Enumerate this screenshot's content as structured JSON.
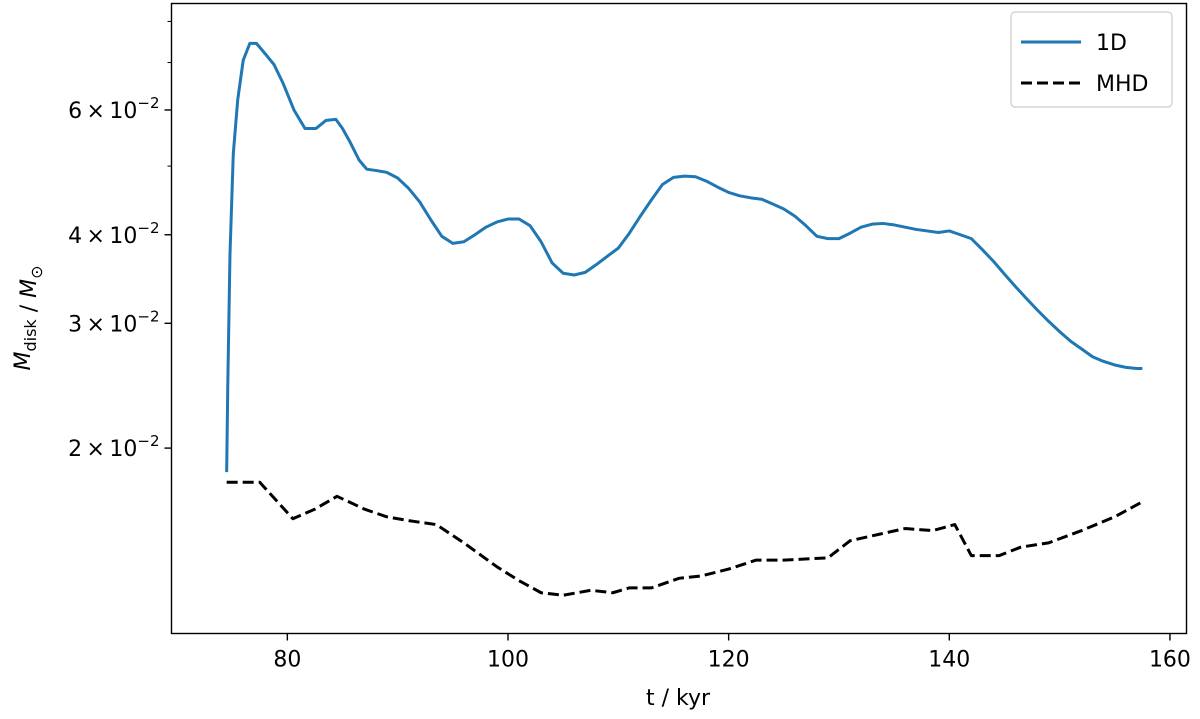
{
  "chart_data": {
    "type": "line",
    "xlabel": "t / kyr",
    "ylabel": {
      "main": "M",
      "sub": "disk",
      "sep": " / ",
      "main2": "M",
      "sub2": "⊙"
    },
    "xlim": [
      69.5,
      161.5
    ],
    "ylim": [
      0.01095,
      0.0848
    ],
    "yscale": "log",
    "x_ticks": [
      80,
      100,
      120,
      140,
      160
    ],
    "x_tick_labels": [
      "80",
      "100",
      "120",
      "140",
      "160"
    ],
    "y_ticks": [
      0.02,
      0.03,
      0.04,
      0.06
    ],
    "y_tick_labels": [
      {
        "mant": "2",
        "times": "×",
        "base": "10",
        "exp": "−2"
      },
      {
        "mant": "3",
        "times": "×",
        "base": "10",
        "exp": "−2"
      },
      {
        "mant": "4",
        "times": "×",
        "base": "10",
        "exp": "−2"
      },
      {
        "mant": "6",
        "times": "×",
        "base": "10",
        "exp": "−2"
      }
    ],
    "legend_position": "top-right",
    "grid": false,
    "series": [
      {
        "name": "1D",
        "color": "#1f77b4",
        "style": "solid",
        "x": [
          74.5,
          74.6,
          74.8,
          75.1,
          75.5,
          76.0,
          76.6,
          77.2,
          78.0,
          78.8,
          79.6,
          80.6,
          81.6,
          82.6,
          83.5,
          84.4,
          85.0,
          85.7,
          86.5,
          87.2,
          88.0,
          89.0,
          90.0,
          91.0,
          92.0,
          93.0,
          94.0,
          95.0,
          96.0,
          97.0,
          98.0,
          99.0,
          100.0,
          101.0,
          102.0,
          103.0,
          104.0,
          105.0,
          106.0,
          107.0,
          108.0,
          109.0,
          110.0,
          111.0,
          112.0,
          113.0,
          114.0,
          115.0,
          116.0,
          117.0,
          118.0,
          119.0,
          120.0,
          121.0,
          122.0,
          123.0,
          124.0,
          125.0,
          126.0,
          127.0,
          128.0,
          129.0,
          130.0,
          131.0,
          132.0,
          133.0,
          134.0,
          135.0,
          136.0,
          137.0,
          138.0,
          139.0,
          140.0,
          141.0,
          142.0,
          143.0,
          144.0,
          145.0,
          146.0,
          147.0,
          148.0,
          149.0,
          150.0,
          151.0,
          152.0,
          153.0,
          154.0,
          155.0,
          156.0,
          157.0,
          157.5
        ],
        "y": [
          0.0185,
          0.0245,
          0.0375,
          0.052,
          0.062,
          0.0705,
          0.0745,
          0.0745,
          0.072,
          0.0695,
          0.0655,
          0.06,
          0.0565,
          0.0565,
          0.058,
          0.0582,
          0.0565,
          0.054,
          0.051,
          0.0495,
          0.0493,
          0.049,
          0.0481,
          0.0465,
          0.0445,
          0.042,
          0.0398,
          0.0389,
          0.0391,
          0.04,
          0.041,
          0.0417,
          0.0421,
          0.0421,
          0.0412,
          0.0391,
          0.0365,
          0.0353,
          0.0351,
          0.0354,
          0.0363,
          0.0373,
          0.0383,
          0.0402,
          0.0425,
          0.0448,
          0.0471,
          0.0482,
          0.0484,
          0.0483,
          0.0476,
          0.0467,
          0.0459,
          0.0454,
          0.0451,
          0.0449,
          0.0442,
          0.0435,
          0.0425,
          0.0412,
          0.0398,
          0.0395,
          0.0395,
          0.0402,
          0.041,
          0.0414,
          0.0415,
          0.0413,
          0.041,
          0.0407,
          0.0405,
          0.0403,
          0.0405,
          0.04,
          0.0395,
          0.0381,
          0.0367,
          0.0352,
          0.0338,
          0.0325,
          0.0313,
          0.0302,
          0.0292,
          0.0283,
          0.0276,
          0.0269,
          0.0265,
          0.0262,
          0.026,
          0.0259,
          0.0259
        ]
      },
      {
        "name": "MHD",
        "color": "#000000",
        "style": "dashed",
        "x": [
          74.5,
          75.5,
          77.5,
          80.5,
          82.5,
          84.5,
          87.0,
          89.0,
          91.0,
          93.5,
          96.0,
          99.0,
          101.0,
          103.0,
          105.0,
          107.5,
          109.5,
          111.0,
          113.0,
          115.5,
          117.5,
          120.0,
          122.5,
          125.0,
          129.0,
          131.0,
          133.5,
          136.0,
          138.5,
          140.5,
          142.0,
          144.5,
          146.5,
          149.0,
          152.0,
          155.0,
          157.5
        ],
        "y": [
          0.0179,
          0.0179,
          0.0179,
          0.0159,
          0.0164,
          0.0171,
          0.0164,
          0.016,
          0.0158,
          0.0156,
          0.0147,
          0.0136,
          0.013,
          0.0125,
          0.0124,
          0.0126,
          0.0125,
          0.0127,
          0.0127,
          0.0131,
          0.0132,
          0.0135,
          0.0139,
          0.0139,
          0.014,
          0.0148,
          0.0151,
          0.0154,
          0.0153,
          0.0156,
          0.0141,
          0.0141,
          0.0145,
          0.0147,
          0.0153,
          0.016,
          0.0168
        ]
      }
    ]
  }
}
